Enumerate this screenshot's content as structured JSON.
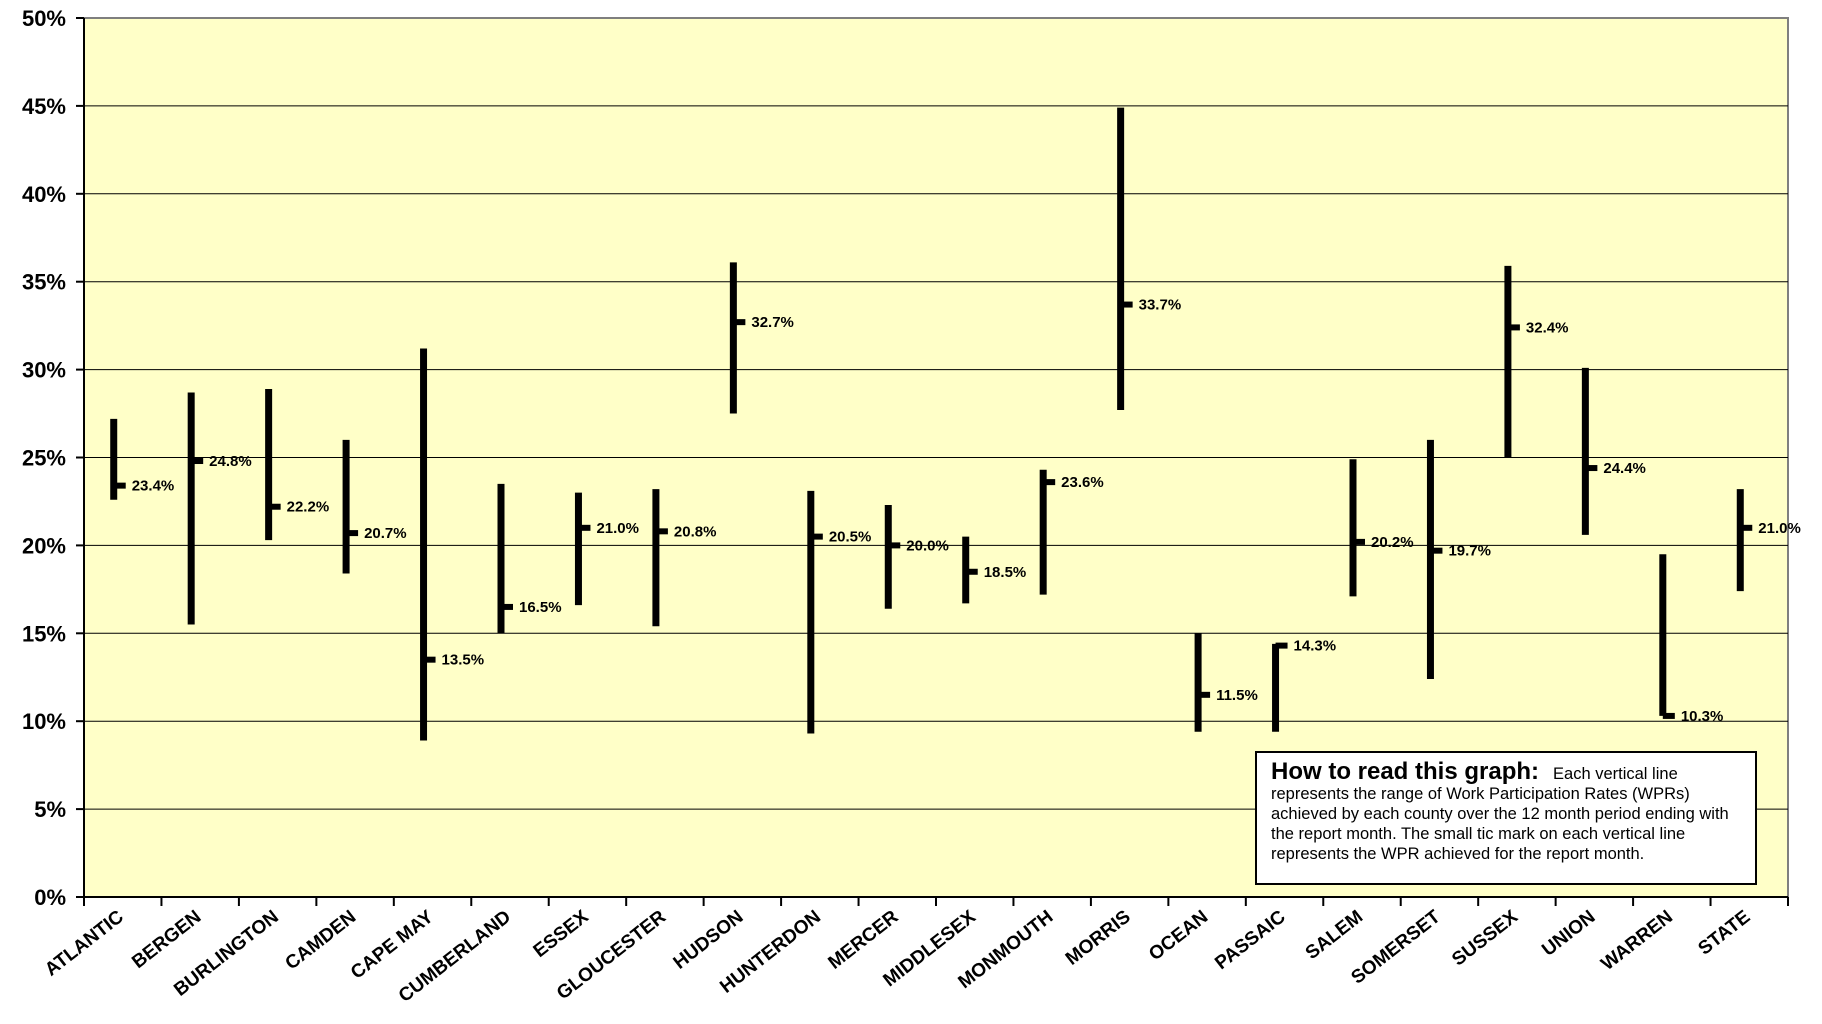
{
  "colors": {
    "plot_background": "#FFFFC8",
    "range_line": "#000000",
    "gridline": "#000000",
    "note_background": "#FFFFFF"
  },
  "note": {
    "title": "How to read this graph:",
    "text": "Each vertical line represents the range of Work Participation Rates (WPRs) achieved by each county over the 12 month period ending with the report month.  The small tic mark on each vertical line represents the WPR achieved for the report month."
  },
  "chart_data": {
    "type": "range",
    "title": "",
    "xlabel": "",
    "ylabel": "",
    "ylim": [
      0,
      50
    ],
    "y_ticks": [
      "0%",
      "5%",
      "10%",
      "15%",
      "20%",
      "25%",
      "30%",
      "35%",
      "40%",
      "45%",
      "50%"
    ],
    "grid": true,
    "legend": "none",
    "categories": [
      "ATLANTIC",
      "BERGEN",
      "BURLINGTON",
      "CAMDEN",
      "CAPE MAY",
      "CUMBERLAND",
      "ESSEX",
      "GLOUCESTER",
      "HUDSON",
      "HUNTERDON",
      "MERCER",
      "MIDDLESEX",
      "MONMOUTH",
      "MORRIS",
      "OCEAN",
      "PASSAIC",
      "SALEM",
      "SOMERSET",
      "SUSSEX",
      "UNION",
      "WARREN",
      "STATE"
    ],
    "low": [
      22.6,
      15.5,
      20.3,
      18.4,
      8.9,
      15.0,
      16.6,
      15.4,
      27.5,
      9.3,
      16.4,
      16.7,
      17.2,
      27.7,
      9.4,
      9.4,
      17.1,
      12.4,
      25.0,
      20.6,
      10.3,
      17.4
    ],
    "high": [
      27.2,
      28.7,
      28.9,
      26.0,
      31.2,
      23.5,
      23.0,
      23.2,
      36.1,
      23.1,
      22.3,
      20.5,
      24.3,
      44.9,
      15.0,
      14.4,
      24.9,
      26.0,
      35.9,
      30.1,
      19.5,
      23.2
    ],
    "value": [
      23.4,
      24.8,
      22.2,
      20.7,
      13.5,
      16.5,
      21.0,
      20.8,
      32.7,
      20.5,
      20.0,
      18.5,
      23.6,
      33.7,
      11.5,
      14.3,
      20.2,
      19.7,
      32.4,
      24.4,
      10.3,
      21.0
    ],
    "value_labels": [
      "23.4%",
      "24.8%",
      "22.2%",
      "20.7%",
      "13.5%",
      "16.5%",
      "21.0%",
      "20.8%",
      "32.7%",
      "20.5%",
      "20.0%",
      "18.5%",
      "23.6%",
      "33.7%",
      "11.5%",
      "14.3%",
      "20.2%",
      "19.7%",
      "32.4%",
      "24.4%",
      "10.3%",
      "21.0%"
    ]
  }
}
